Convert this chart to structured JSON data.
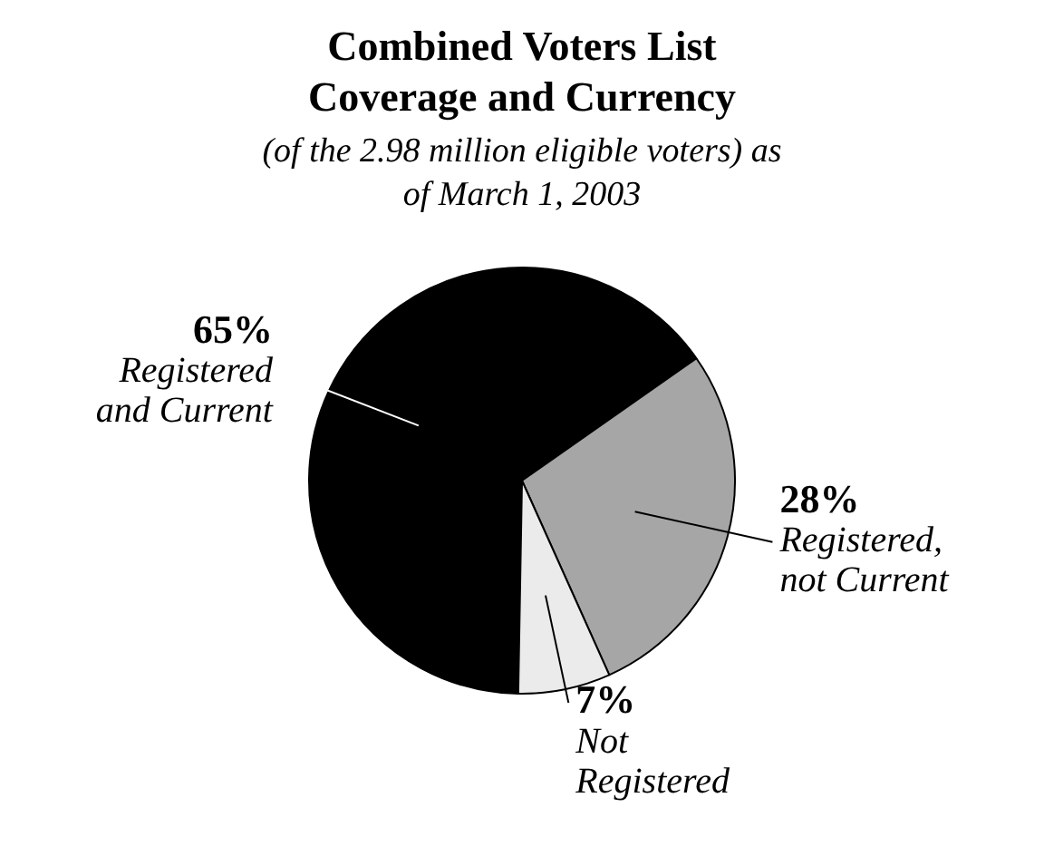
{
  "chart_data": {
    "type": "pie",
    "title": "Combined Voters List Coverage and Currency",
    "subtitle": "(of the 2.98 million eligible voters) as of March 1, 2003",
    "categories": [
      "Registered and Current",
      "Registered, not Current",
      "Not Registered"
    ],
    "values": [
      65,
      28,
      7
    ],
    "colors": [
      "#000000",
      "#a6a6a6",
      "#ebebeb"
    ],
    "value_labels": [
      "65%",
      "28%",
      "7%"
    ],
    "legend": false
  }
}
